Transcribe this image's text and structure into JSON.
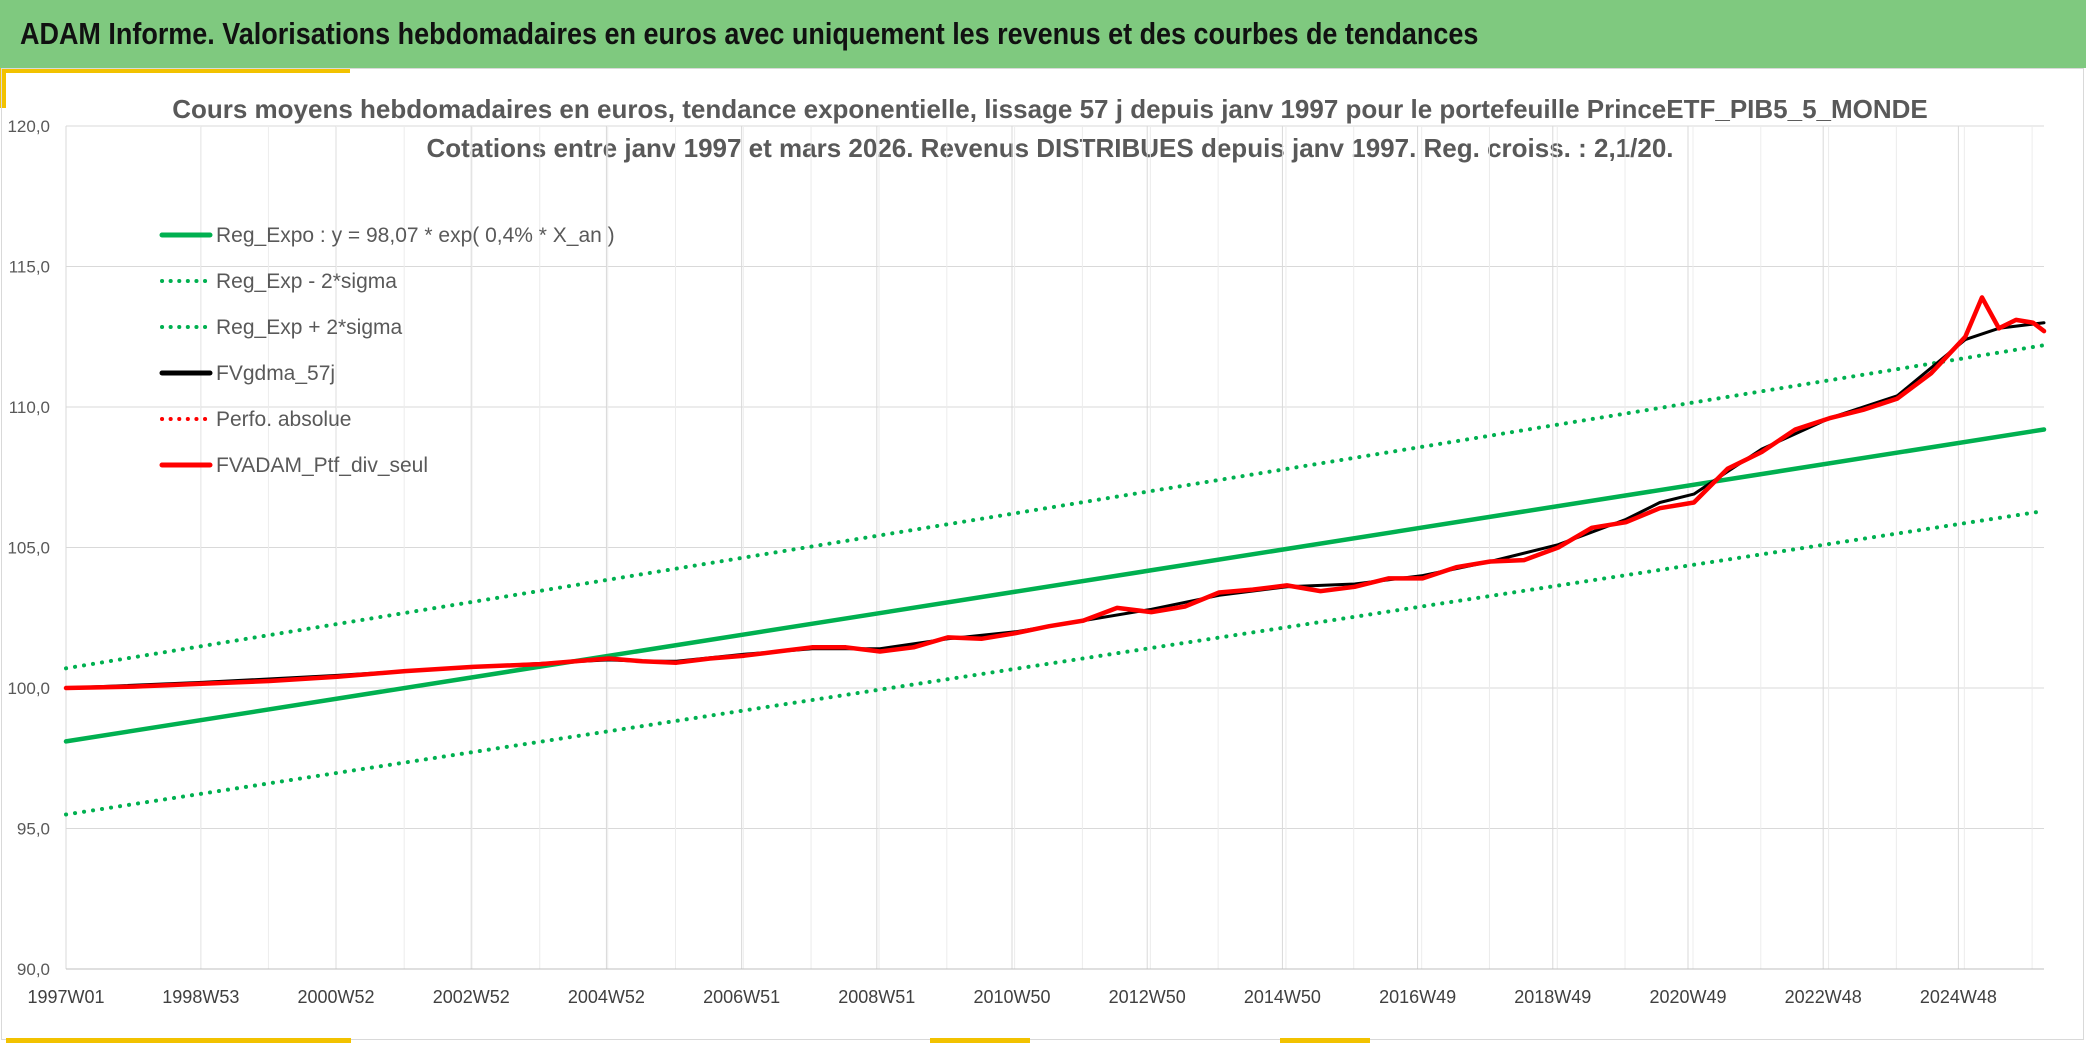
{
  "header": {
    "title": "ADAM Informe. Valorisations hebdomadaires en euros avec uniquement les revenus et des courbes de tendances",
    "background": "#7fc97f",
    "accent": "#f2c200"
  },
  "chart_data": {
    "type": "line",
    "title": "Cours moyens hebdomadaires en euros, tendance exponentielle, lissage 57 j depuis janv 1997 pour le portefeuille PrinceETF_PIB5_5_MONDE",
    "subtitle": "Cotations entre janv 1997 et mars 2026. Revenus DISTRIBUES depuis janv 1997. Reg. croiss. : 2,1/20.",
    "xlabel": "",
    "ylabel": "",
    "ylim": [
      90,
      120
    ],
    "yticks": [
      "120,0",
      "115,0",
      "110,0",
      "105,0",
      "100,0",
      "95,0",
      "90,0"
    ],
    "xlim": [
      "1997-01-01",
      "2026-03-01"
    ],
    "xticks": [
      {
        "label": "1997W01",
        "date": "1997-01-01"
      },
      {
        "label": "1998W53",
        "date": "1998-12-28"
      },
      {
        "label": "2000W52",
        "date": "2000-12-25"
      },
      {
        "label": "2002W52",
        "date": "2002-12-23"
      },
      {
        "label": "2004W52",
        "date": "2004-12-20"
      },
      {
        "label": "2006W51",
        "date": "2006-12-18"
      },
      {
        "label": "2008W51",
        "date": "2008-12-15"
      },
      {
        "label": "2010W50",
        "date": "2010-12-13"
      },
      {
        "label": "2012W50",
        "date": "2012-12-10"
      },
      {
        "label": "2014W50",
        "date": "2014-12-08"
      },
      {
        "label": "2016W49",
        "date": "2016-12-05"
      },
      {
        "label": "2018W49",
        "date": "2018-12-03"
      },
      {
        "label": "2020W49",
        "date": "2020-11-30"
      },
      {
        "label": "2022W48",
        "date": "2022-11-28"
      },
      {
        "label": "2024W48",
        "date": "2024-11-25"
      }
    ],
    "grid": true,
    "legend_position": "top-left",
    "series": [
      {
        "name": "Reg_Expo : y = 98,07 * exp( 0,4% *  X_an )",
        "color": "#00b050",
        "style": "solid",
        "points": [
          [
            "1997-01-01",
            98.1
          ],
          [
            "2026-03-01",
            109.2
          ]
        ]
      },
      {
        "name": "Reg_Exp - 2*sigma",
        "color": "#00b050",
        "style": "dotted",
        "points": [
          [
            "1997-01-01",
            95.5
          ],
          [
            "2026-03-01",
            106.3
          ]
        ]
      },
      {
        "name": "Reg_Exp + 2*sigma",
        "color": "#00b050",
        "style": "dotted",
        "points": [
          [
            "1997-01-01",
            100.7
          ],
          [
            "2026-03-01",
            112.2
          ]
        ]
      },
      {
        "name": "FVgdma_57j",
        "color": "#000000",
        "style": "solid",
        "points": [
          [
            "1997-01-01",
            100.0
          ],
          [
            "1999-01-01",
            100.2
          ],
          [
            "2001-01-01",
            100.45
          ],
          [
            "2003-01-01",
            100.75
          ],
          [
            "2005-01-01",
            101.0
          ],
          [
            "2005-07-01",
            100.95
          ],
          [
            "2006-01-01",
            100.95
          ],
          [
            "2007-01-01",
            101.2
          ],
          [
            "2008-01-01",
            101.4
          ],
          [
            "2009-01-01",
            101.4
          ],
          [
            "2010-01-01",
            101.75
          ],
          [
            "2011-01-01",
            102.0
          ],
          [
            "2012-01-01",
            102.4
          ],
          [
            "2013-01-01",
            102.8
          ],
          [
            "2014-01-01",
            103.3
          ],
          [
            "2015-01-01",
            103.6
          ],
          [
            "2016-01-01",
            103.7
          ],
          [
            "2017-01-01",
            104.0
          ],
          [
            "2018-01-01",
            104.5
          ],
          [
            "2019-01-01",
            105.1
          ],
          [
            "2020-01-01",
            106.0
          ],
          [
            "2020-07-01",
            106.6
          ],
          [
            "2021-01-01",
            106.9
          ],
          [
            "2021-07-01",
            107.7
          ],
          [
            "2022-01-01",
            108.5
          ],
          [
            "2023-01-01",
            109.6
          ],
          [
            "2024-01-01",
            110.4
          ],
          [
            "2025-01-01",
            112.4
          ],
          [
            "2025-07-01",
            112.8
          ],
          [
            "2026-03-01",
            113.0
          ]
        ]
      },
      {
        "name": "Perfo. absolue",
        "color": "#ff0000",
        "style": "dotted",
        "points": []
      },
      {
        "name": "FVADAM_Ptf_div_seul",
        "color": "#ff0000",
        "style": "solid",
        "points": [
          [
            "1997-01-01",
            100.0
          ],
          [
            "1998-01-01",
            100.05
          ],
          [
            "1999-01-01",
            100.15
          ],
          [
            "2000-01-01",
            100.25
          ],
          [
            "2001-01-01",
            100.4
          ],
          [
            "2002-01-01",
            100.6
          ],
          [
            "2003-01-01",
            100.75
          ],
          [
            "2004-01-01",
            100.85
          ],
          [
            "2005-01-01",
            101.05
          ],
          [
            "2005-07-01",
            100.95
          ],
          [
            "2006-01-01",
            100.9
          ],
          [
            "2006-07-01",
            101.05
          ],
          [
            "2007-01-01",
            101.15
          ],
          [
            "2007-07-01",
            101.3
          ],
          [
            "2008-01-01",
            101.45
          ],
          [
            "2008-07-01",
            101.45
          ],
          [
            "2009-01-01",
            101.3
          ],
          [
            "2009-07-01",
            101.45
          ],
          [
            "2010-01-01",
            101.8
          ],
          [
            "2010-07-01",
            101.75
          ],
          [
            "2011-01-01",
            101.95
          ],
          [
            "2011-07-01",
            102.2
          ],
          [
            "2012-01-01",
            102.4
          ],
          [
            "2012-07-01",
            102.85
          ],
          [
            "2013-01-01",
            102.7
          ],
          [
            "2013-07-01",
            102.9
          ],
          [
            "2014-01-01",
            103.4
          ],
          [
            "2014-07-01",
            103.5
          ],
          [
            "2015-01-01",
            103.65
          ],
          [
            "2015-07-01",
            103.45
          ],
          [
            "2016-01-01",
            103.6
          ],
          [
            "2016-07-01",
            103.9
          ],
          [
            "2017-01-01",
            103.9
          ],
          [
            "2017-07-01",
            104.3
          ],
          [
            "2018-01-01",
            104.5
          ],
          [
            "2018-07-01",
            104.55
          ],
          [
            "2019-01-01",
            105.0
          ],
          [
            "2019-07-01",
            105.7
          ],
          [
            "2020-01-01",
            105.9
          ],
          [
            "2020-07-01",
            106.4
          ],
          [
            "2021-01-01",
            106.6
          ],
          [
            "2021-07-01",
            107.8
          ],
          [
            "2022-01-01",
            108.4
          ],
          [
            "2022-07-01",
            109.2
          ],
          [
            "2023-01-01",
            109.6
          ],
          [
            "2023-07-01",
            109.9
          ],
          [
            "2024-01-01",
            110.3
          ],
          [
            "2024-07-01",
            111.2
          ],
          [
            "2025-01-01",
            112.5
          ],
          [
            "2025-04-01",
            113.9
          ],
          [
            "2025-07-01",
            112.8
          ],
          [
            "2025-10-01",
            113.1
          ],
          [
            "2026-01-01",
            113.0
          ],
          [
            "2026-03-01",
            112.7
          ]
        ]
      }
    ]
  }
}
